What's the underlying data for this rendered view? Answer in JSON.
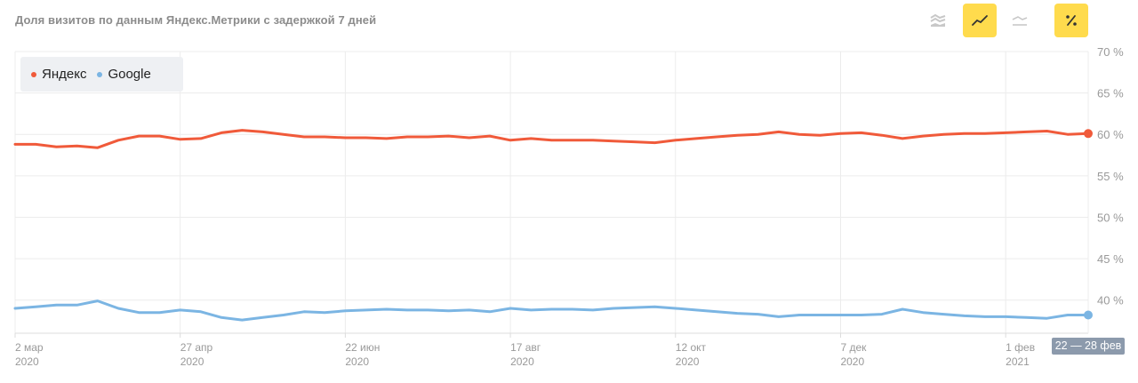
{
  "header": {
    "title": "Доля визитов по данным Яндекс.Метрики с задержкой 7 дней"
  },
  "toolbar": {
    "buttons": [
      {
        "name": "stacked-area-view-button",
        "icon": "stacked-area-icon",
        "active": false
      },
      {
        "name": "line-view-button",
        "icon": "line-chart-icon",
        "active": true
      },
      {
        "name": "area-view-button",
        "icon": "area-chart-icon",
        "active": false
      },
      {
        "name": "percent-toggle-button",
        "icon": "percent-icon",
        "active": true
      }
    ]
  },
  "selected_range": "22 — 28 фев",
  "colors": {
    "yandex": "#f05a3a",
    "google": "#7bb5e3",
    "grid": "#ececec",
    "active_button": "#ffdb4d"
  },
  "chart_data": {
    "type": "line",
    "title": "Доля визитов по данным Яндекс.Метрики с задержкой 7 дней",
    "xlabel": "",
    "ylabel": "",
    "ylim": [
      36,
      70
    ],
    "y_ticks": [
      "70 %",
      "65 %",
      "60 %",
      "55 %",
      "50 %",
      "45 %",
      "40 %"
    ],
    "y_tick_values": [
      70,
      65,
      60,
      55,
      50,
      45,
      40
    ],
    "x_tick_labels": [
      {
        "top": "2 мар",
        "bottom": "2020",
        "index": 0
      },
      {
        "top": "27 апр",
        "bottom": "2020",
        "index": 8
      },
      {
        "top": "22 июн",
        "bottom": "2020",
        "index": 16
      },
      {
        "top": "17 авг",
        "bottom": "2020",
        "index": 24
      },
      {
        "top": "12 окт",
        "bottom": "2020",
        "index": 32
      },
      {
        "top": "7 дек",
        "bottom": "2020",
        "index": 40
      },
      {
        "top": "1 фев",
        "bottom": "2021",
        "index": 48
      }
    ],
    "x_weeks": 53,
    "grid": true,
    "legend_placement": "top-left",
    "series": [
      {
        "name": "Яндекс",
        "color": "#f05a3a",
        "values": [
          58.8,
          58.8,
          58.5,
          58.6,
          58.4,
          59.3,
          59.8,
          59.8,
          59.4,
          59.5,
          60.2,
          60.5,
          60.3,
          60.0,
          59.7,
          59.7,
          59.6,
          59.6,
          59.5,
          59.7,
          59.7,
          59.8,
          59.6,
          59.8,
          59.3,
          59.5,
          59.3,
          59.3,
          59.3,
          59.2,
          59.1,
          59.0,
          59.3,
          59.5,
          59.7,
          59.9,
          60.0,
          60.3,
          60.0,
          59.9,
          60.1,
          60.2,
          59.9,
          59.5,
          59.8,
          60.0,
          60.1,
          60.1,
          60.2,
          60.3,
          60.4,
          60.0,
          60.1
        ]
      },
      {
        "name": "Google",
        "color": "#7bb5e3",
        "values": [
          39.0,
          39.2,
          39.4,
          39.4,
          39.9,
          39.0,
          38.5,
          38.5,
          38.8,
          38.6,
          37.9,
          37.6,
          37.9,
          38.2,
          38.6,
          38.5,
          38.7,
          38.8,
          38.9,
          38.8,
          38.8,
          38.7,
          38.8,
          38.6,
          39.0,
          38.8,
          38.9,
          38.9,
          38.8,
          39.0,
          39.1,
          39.2,
          39.0,
          38.8,
          38.6,
          38.4,
          38.3,
          38.0,
          38.2,
          38.2,
          38.2,
          38.2,
          38.3,
          38.9,
          38.5,
          38.3,
          38.1,
          38.0,
          38.0,
          37.9,
          37.8,
          38.2,
          38.2
        ]
      }
    ]
  }
}
